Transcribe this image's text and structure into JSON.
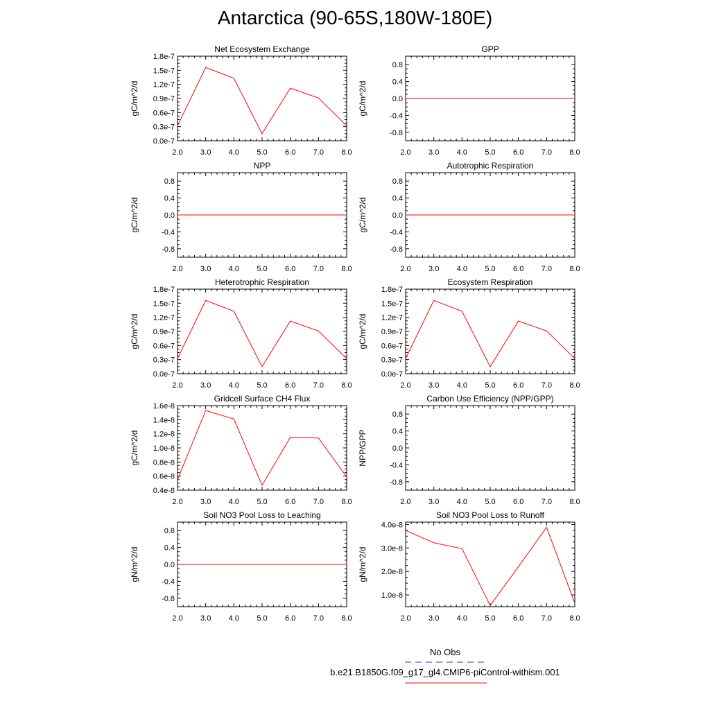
{
  "page_title": "Antarctica (90-65S,180W-180E)",
  "chart_data": [
    {
      "type": "line",
      "title": "Net Ecosystem Exchange",
      "ylabel": "gC/m^2/d",
      "x": [
        2,
        3,
        4,
        5,
        6,
        7,
        8
      ],
      "xticks": [
        "2.0",
        "3.0",
        "4.0",
        "5.0",
        "6.0",
        "7.0",
        "8.0"
      ],
      "ylim": [
        0,
        1.8
      ],
      "yticks": [
        0,
        0.3,
        0.6,
        0.9,
        1.2,
        1.5,
        1.8
      ],
      "yticklabels": [
        "0.0e-7",
        "0.3e-7",
        "0.6e-7",
        "0.9e-7",
        "1.2e-7",
        "1.5e-7",
        "1.8e-7"
      ],
      "series": [
        {
          "values": [
            0.32,
            1.56,
            1.33,
            0.15,
            1.12,
            0.91,
            0.32
          ],
          "color": "#ff0000"
        }
      ]
    },
    {
      "type": "line",
      "title": "GPP",
      "ylabel": "gC/m^2/d",
      "x": [
        2,
        3,
        4,
        5,
        6,
        7,
        8
      ],
      "xticks": [
        "2.0",
        "3.0",
        "4.0",
        "5.0",
        "6.0",
        "7.0",
        "8.0"
      ],
      "ylim": [
        -1,
        1
      ],
      "yticks": [
        -0.8,
        -0.4,
        0,
        0.4,
        0.8
      ],
      "yticklabels": [
        "-0.8",
        "-0.4",
        "0.0",
        "0.4",
        "0.8"
      ],
      "series": [
        {
          "values": [
            0,
            0,
            0,
            0,
            0,
            0,
            0
          ],
          "color": "#ff0000"
        }
      ]
    },
    {
      "type": "line",
      "title": "NPP",
      "ylabel": "gC/m^2/d",
      "x": [
        2,
        3,
        4,
        5,
        6,
        7,
        8
      ],
      "xticks": [
        "2.0",
        "3.0",
        "4.0",
        "5.0",
        "6.0",
        "7.0",
        "8.0"
      ],
      "ylim": [
        -1,
        1
      ],
      "yticks": [
        -0.8,
        -0.4,
        0,
        0.4,
        0.8
      ],
      "yticklabels": [
        "-0.8",
        "-0.4",
        "0.0",
        "0.4",
        "0.8"
      ],
      "series": [
        {
          "values": [
            0,
            0,
            0,
            0,
            0,
            0,
            0
          ],
          "color": "#ff0000"
        }
      ]
    },
    {
      "type": "line",
      "title": "Autotrophic Respiration",
      "ylabel": "gC/m^2/d",
      "x": [
        2,
        3,
        4,
        5,
        6,
        7,
        8
      ],
      "xticks": [
        "2.0",
        "3.0",
        "4.0",
        "5.0",
        "6.0",
        "7.0",
        "8.0"
      ],
      "ylim": [
        -1,
        1
      ],
      "yticks": [
        -0.8,
        -0.4,
        0,
        0.4,
        0.8
      ],
      "yticklabels": [
        "-0.8",
        "-0.4",
        "0.0",
        "0.4",
        "0.8"
      ],
      "series": [
        {
          "values": [
            0,
            0,
            0,
            0,
            0,
            0,
            0
          ],
          "color": "#ff0000"
        }
      ]
    },
    {
      "type": "line",
      "title": "Heterotrophic Respiration",
      "ylabel": "gC/m^2/d",
      "x": [
        2,
        3,
        4,
        5,
        6,
        7,
        8
      ],
      "xticks": [
        "2.0",
        "3.0",
        "4.0",
        "5.0",
        "6.0",
        "7.0",
        "8.0"
      ],
      "ylim": [
        0,
        1.8
      ],
      "yticks": [
        0,
        0.3,
        0.6,
        0.9,
        1.2,
        1.5,
        1.8
      ],
      "yticklabels": [
        "0.0e-7",
        "0.3e-7",
        "0.6e-7",
        "0.9e-7",
        "1.2e-7",
        "1.5e-7",
        "1.8e-7"
      ],
      "series": [
        {
          "values": [
            0.32,
            1.56,
            1.33,
            0.15,
            1.12,
            0.91,
            0.32
          ],
          "color": "#ff0000"
        }
      ]
    },
    {
      "type": "line",
      "title": "Ecosystem Respiration",
      "ylabel": "gC/m^2/d",
      "x": [
        2,
        3,
        4,
        5,
        6,
        7,
        8
      ],
      "xticks": [
        "2.0",
        "3.0",
        "4.0",
        "5.0",
        "6.0",
        "7.0",
        "8.0"
      ],
      "ylim": [
        0,
        1.8
      ],
      "yticks": [
        0,
        0.3,
        0.6,
        0.9,
        1.2,
        1.5,
        1.8
      ],
      "yticklabels": [
        "0.0e-7",
        "0.3e-7",
        "0.6e-7",
        "0.9e-7",
        "1.2e-7",
        "1.5e-7",
        "1.8e-7"
      ],
      "series": [
        {
          "values": [
            0.32,
            1.56,
            1.33,
            0.15,
            1.12,
            0.91,
            0.32
          ],
          "color": "#ff0000"
        }
      ]
    },
    {
      "type": "line",
      "title": "Gridcell Surface CH4 Flux",
      "ylabel": "gC/m^2/d",
      "x": [
        2,
        3,
        4,
        5,
        6,
        7,
        8
      ],
      "xticks": [
        "2.0",
        "3.0",
        "4.0",
        "5.0",
        "6.0",
        "7.0",
        "8.0"
      ],
      "ylim": [
        0.4,
        1.6
      ],
      "yticks": [
        0.4,
        0.6,
        0.8,
        1.0,
        1.2,
        1.4,
        1.6
      ],
      "yticklabels": [
        "0.4e-8",
        "0.6e-8",
        "0.8e-8",
        "1.0e-8",
        "1.2e-8",
        "1.4e-8",
        "1.6e-8"
      ],
      "series": [
        {
          "values": [
            0.55,
            1.53,
            1.41,
            0.47,
            1.15,
            1.14,
            0.59
          ],
          "color": "#ff0000"
        }
      ]
    },
    {
      "type": "line",
      "title": "Carbon Use Efficiency (NPP/GPP)",
      "ylabel": "NPP/GPP",
      "x": [
        2,
        3,
        4,
        5,
        6,
        7,
        8
      ],
      "xticks": [
        "2.0",
        "3.0",
        "4.0",
        "5.0",
        "6.0",
        "7.0",
        "8.0"
      ],
      "ylim": [
        -1,
        1
      ],
      "yticks": [
        -0.8,
        -0.4,
        0,
        0.4,
        0.8
      ],
      "yticklabels": [
        "-0.8",
        "-0.4",
        "0.0",
        "0.4",
        "0.8"
      ],
      "series": []
    },
    {
      "type": "line",
      "title": "Soil NO3 Pool Loss to Leaching",
      "ylabel": "gN/m^2/d",
      "x": [
        2,
        3,
        4,
        5,
        6,
        7,
        8
      ],
      "xticks": [
        "2.0",
        "3.0",
        "4.0",
        "5.0",
        "6.0",
        "7.0",
        "8.0"
      ],
      "ylim": [
        -1,
        1
      ],
      "yticks": [
        -0.8,
        -0.4,
        0,
        0.4,
        0.8
      ],
      "yticklabels": [
        "-0.8",
        "-0.4",
        "0.0",
        "0.4",
        "0.8"
      ],
      "series": [
        {
          "values": [
            0,
            0,
            0,
            0,
            0,
            0,
            0
          ],
          "color": "#ff0000"
        }
      ]
    },
    {
      "type": "line",
      "title": "Soil NO3 Pool Loss to Runoff",
      "ylabel": "gN/m^2/d",
      "x": [
        2,
        3,
        4,
        5,
        6,
        7,
        8
      ],
      "xticks": [
        "2.0",
        "3.0",
        "4.0",
        "5.0",
        "6.0",
        "7.0",
        "8.0"
      ],
      "ylim": [
        0.5,
        4.1
      ],
      "yticks": [
        1,
        2,
        3,
        4
      ],
      "yticklabels": [
        "1.0e-8",
        "2.0e-8",
        "3.0e-8",
        "4.0e-8"
      ],
      "series": [
        {
          "values": [
            3.75,
            3.22,
            2.97,
            0.55,
            2.2,
            3.88,
            0.65
          ],
          "color": "#ff0000"
        }
      ]
    }
  ],
  "legend": {
    "entries": [
      {
        "label": "No Obs",
        "color": "#3333cc",
        "dash": true
      },
      {
        "label": "b.e21.B1850G.f09_g17_gl4.CMIP6-piControl-withism.001",
        "color": "#ff0000",
        "dash": false
      }
    ]
  }
}
